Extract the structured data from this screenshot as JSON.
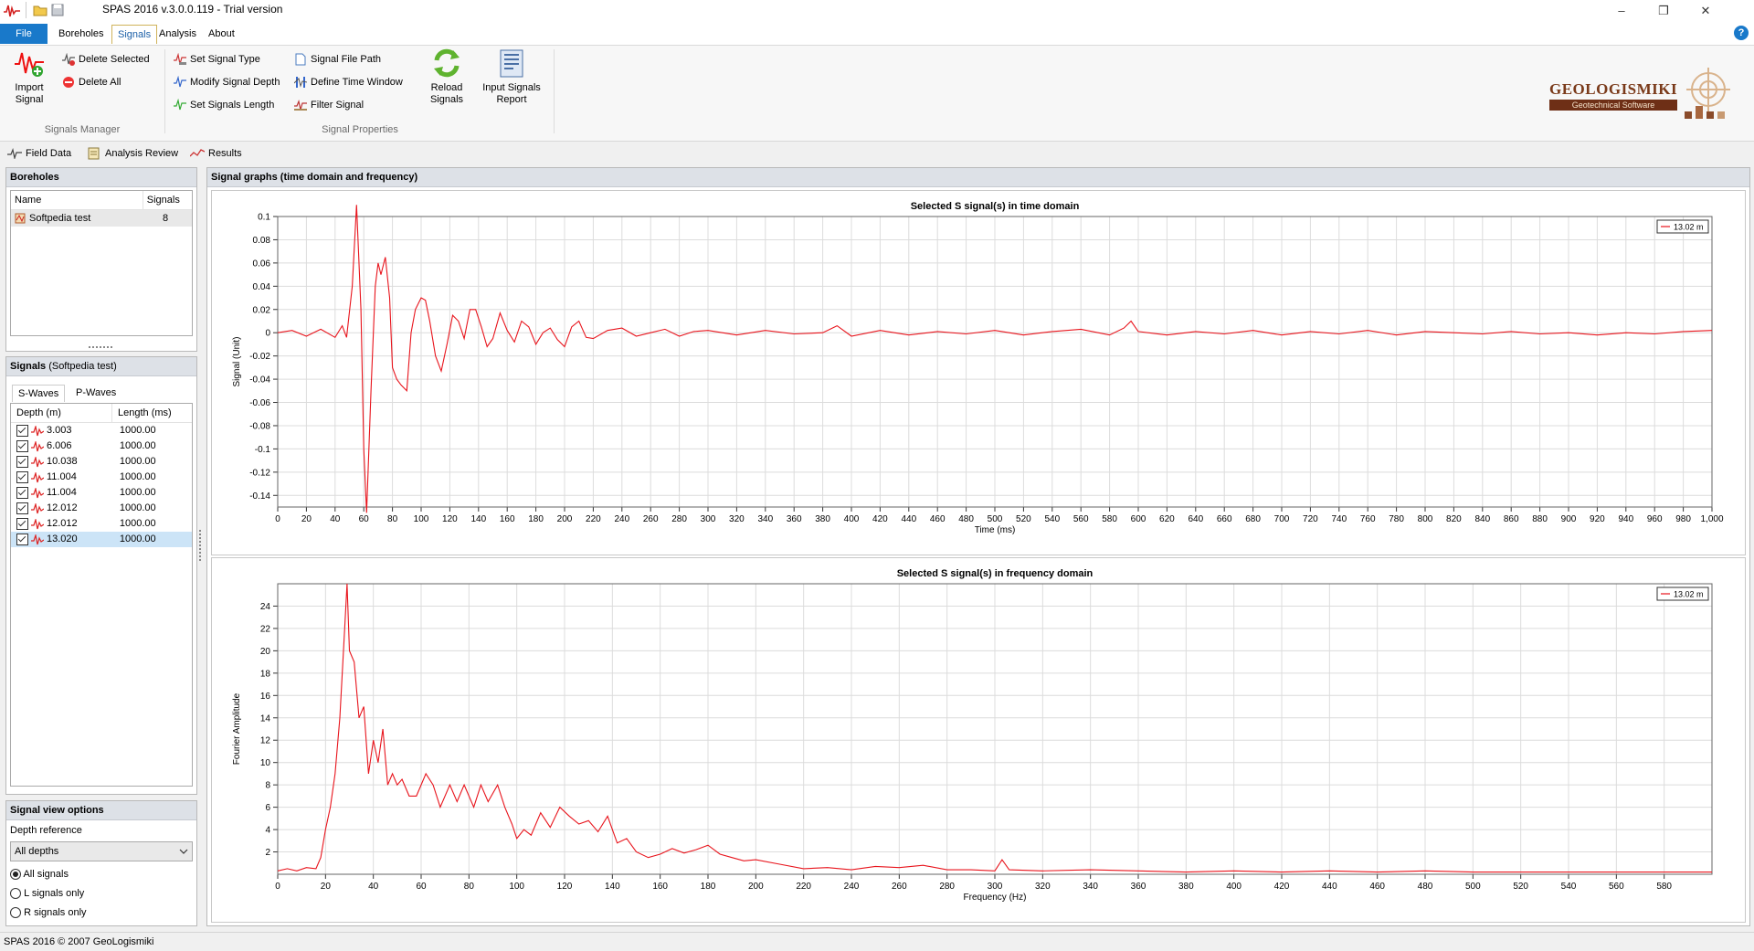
{
  "window": {
    "title": "SPAS 2016 v.3.0.0.119 - Trial version",
    "minimize_glyph": "–",
    "restore_glyph": "❐",
    "close_glyph": "✕"
  },
  "menu": {
    "tabs": [
      "File",
      "Boreholes",
      "Signals",
      "Analysis",
      "About"
    ],
    "active_tab": "Signals",
    "help_glyph": "?"
  },
  "ribbon": {
    "import_signal": "Import\nSignal",
    "import_signal_l1": "Import",
    "import_signal_l2": "Signal",
    "delete_selected": "Delete Selected",
    "delete_all": "Delete All",
    "signals_manager_label": "Signals Manager",
    "set_signal_type": "Set Signal Type",
    "modify_signal_depth": "Modify Signal Depth",
    "set_signals_length": "Set Signals Length",
    "signal_file_path": "Signal File Path",
    "define_time_window": "Define Time Window",
    "filter_signal": "Filter Signal",
    "reload_l1": "Reload",
    "reload_l2": "Signals",
    "report_l1": "Input Signals",
    "report_l2": "Report",
    "signal_properties_label": "Signal Properties",
    "logo_text": "GEOLOGISMIKI",
    "logo_sub": "Geotechnical Software"
  },
  "view_tabs": [
    "Field Data",
    "Analysis Review",
    "Results"
  ],
  "boreholes": {
    "title": "Boreholes",
    "col_name": "Name",
    "col_signals": "Signals",
    "rows": [
      {
        "name": "Softpedia test",
        "signals": "8"
      }
    ]
  },
  "signals": {
    "title": "Signals",
    "title_suffix": "(Softpedia test)",
    "tab_s": "S-Waves",
    "tab_p": "P-Waves",
    "col_depth": "Depth (m)",
    "col_length": "Length (ms)",
    "rows": [
      {
        "depth": "3.003",
        "length": "1000.00"
      },
      {
        "depth": "6.006",
        "length": "1000.00"
      },
      {
        "depth": "10.038",
        "length": "1000.00"
      },
      {
        "depth": "11.004",
        "length": "1000.00"
      },
      {
        "depth": "11.004",
        "length": "1000.00"
      },
      {
        "depth": "12.012",
        "length": "1000.00"
      },
      {
        "depth": "12.012",
        "length": "1000.00"
      },
      {
        "depth": "13.020",
        "length": "1000.00"
      }
    ],
    "selected_index": 7
  },
  "view_options": {
    "title": "Signal view options",
    "depth_reference_label": "Depth reference",
    "depth_reference_value": "All depths",
    "radios": [
      "All signals",
      "L signals only",
      "R signals only"
    ],
    "selected_radio": 0
  },
  "graphs_panel_title": "Signal graphs (time domain and frequency)",
  "status": "SPAS 2016 © 2007 GeoLogismiki",
  "colors": {
    "signal": "#e8141c",
    "accent": "#1979ca",
    "selection": "#cce4f7"
  },
  "chart_data": [
    {
      "type": "line",
      "title": "Selected S signal(s) in time domain",
      "xlabel": "Time (ms)",
      "ylabel": "Signal (Unit)",
      "xlim": [
        0,
        1000
      ],
      "ylim": [
        -0.15,
        0.1
      ],
      "xticks": [
        0,
        20,
        40,
        60,
        80,
        100,
        120,
        140,
        160,
        180,
        200,
        220,
        240,
        260,
        280,
        300,
        320,
        340,
        360,
        380,
        400,
        420,
        440,
        460,
        480,
        500,
        520,
        540,
        560,
        580,
        600,
        620,
        640,
        660,
        680,
        700,
        720,
        740,
        760,
        780,
        800,
        820,
        840,
        860,
        880,
        900,
        920,
        940,
        960,
        980,
        1000
      ],
      "xtick_labels": [
        "0",
        "20",
        "40",
        "60",
        "80",
        "100",
        "120",
        "140",
        "160",
        "180",
        "200",
        "220",
        "240",
        "260",
        "280",
        "300",
        "320",
        "340",
        "360",
        "380",
        "400",
        "420",
        "440",
        "460",
        "480",
        "500",
        "520",
        "540",
        "560",
        "580",
        "600",
        "620",
        "640",
        "660",
        "680",
        "700",
        "720",
        "740",
        "760",
        "780",
        "800",
        "820",
        "840",
        "860",
        "880",
        "900",
        "920",
        "940",
        "960",
        "980",
        "1,000"
      ],
      "yticks": [
        0.1,
        0.08,
        0.06,
        0.04,
        0.02,
        0,
        -0.02,
        -0.04,
        -0.06,
        -0.08,
        -0.1,
        -0.12,
        -0.14
      ],
      "ytick_labels": [
        "0.1",
        "0.08",
        "0.06",
        "0.04",
        "0.02",
        "0",
        "-0.02",
        "-0.04",
        "-0.06",
        "-0.08",
        "-0.1",
        "-0.12",
        "-0.14"
      ],
      "grid": true,
      "legend": "top-right",
      "series": [
        {
          "name": "13.02 m",
          "x": [
            0,
            10,
            20,
            30,
            40,
            45,
            48,
            52,
            55,
            58,
            60,
            62,
            65,
            68,
            70,
            72,
            75,
            78,
            80,
            83,
            86,
            90,
            93,
            96,
            100,
            103,
            106,
            110,
            114,
            118,
            122,
            126,
            130,
            134,
            138,
            142,
            146,
            150,
            155,
            160,
            165,
            170,
            175,
            180,
            185,
            190,
            195,
            200,
            205,
            210,
            215,
            220,
            230,
            240,
            250,
            260,
            270,
            280,
            290,
            300,
            320,
            340,
            360,
            380,
            390,
            400,
            420,
            440,
            460,
            480,
            500,
            520,
            540,
            560,
            580,
            590,
            595,
            600,
            620,
            640,
            660,
            680,
            700,
            720,
            740,
            760,
            780,
            800,
            820,
            840,
            860,
            880,
            900,
            920,
            940,
            960,
            980,
            1000
          ],
          "y": [
            0,
            0.002,
            -0.003,
            0.003,
            -0.004,
            0.006,
            -0.004,
            0.04,
            0.11,
            0.02,
            -0.1,
            -0.155,
            -0.05,
            0.04,
            0.06,
            0.05,
            0.065,
            0.03,
            -0.03,
            -0.04,
            -0.045,
            -0.05,
            0.0,
            0.02,
            0.03,
            0.028,
            0.01,
            -0.02,
            -0.033,
            -0.01,
            0.015,
            0.01,
            -0.005,
            0.02,
            0.02,
            0.005,
            -0.012,
            -0.005,
            0.017,
            0.002,
            -0.008,
            0.01,
            0.005,
            -0.01,
            0.0,
            0.004,
            -0.006,
            -0.012,
            0.005,
            0.01,
            -0.004,
            -0.005,
            0.002,
            0.004,
            -0.003,
            0.0,
            0.003,
            -0.003,
            0.001,
            0.002,
            -0.002,
            0.002,
            -0.001,
            0.0,
            0.006,
            -0.003,
            0.002,
            -0.002,
            0.001,
            -0.001,
            0.002,
            -0.002,
            0.001,
            0.003,
            -0.002,
            0.004,
            0.01,
            0.001,
            -0.002,
            0.001,
            -0.001,
            0.002,
            -0.002,
            0.001,
            -0.001,
            0.002,
            -0.002,
            0.001,
            0.0,
            -0.001,
            0.001,
            -0.001,
            0.0,
            -0.002,
            0.0,
            -0.001,
            0.001,
            0.002
          ]
        }
      ]
    },
    {
      "type": "line",
      "title": "Selected S signal(s) in frequency domain",
      "xlabel": "Frequency (Hz)",
      "ylabel": "Fourier Amplitude",
      "xlim": [
        0,
        600
      ],
      "ylim": [
        0,
        26
      ],
      "xticks": [
        0,
        20,
        40,
        60,
        80,
        100,
        120,
        140,
        160,
        180,
        200,
        220,
        240,
        260,
        280,
        300,
        320,
        340,
        360,
        380,
        400,
        420,
        440,
        460,
        480,
        500,
        520,
        540,
        560,
        580
      ],
      "xtick_labels": [
        "0",
        "20",
        "40",
        "60",
        "80",
        "100",
        "120",
        "140",
        "160",
        "180",
        "200",
        "220",
        "240",
        "260",
        "280",
        "300",
        "320",
        "340",
        "360",
        "380",
        "400",
        "420",
        "440",
        "460",
        "480",
        "500",
        "520",
        "540",
        "560",
        "580"
      ],
      "yticks": [
        2,
        4,
        6,
        8,
        10,
        12,
        14,
        16,
        18,
        20,
        22,
        24
      ],
      "ytick_labels": [
        "2",
        "4",
        "6",
        "8",
        "10",
        "12",
        "14",
        "16",
        "18",
        "20",
        "22",
        "24"
      ],
      "grid": true,
      "legend": "top-right",
      "series": [
        {
          "name": "13.02 m",
          "x": [
            0,
            4,
            8,
            12,
            16,
            18,
            20,
            22,
            24,
            26,
            28,
            29,
            30,
            32,
            34,
            36,
            38,
            40,
            42,
            44,
            46,
            48,
            50,
            52,
            55,
            58,
            62,
            65,
            68,
            72,
            75,
            78,
            82,
            85,
            88,
            92,
            95,
            98,
            100,
            103,
            106,
            110,
            114,
            118,
            122,
            126,
            130,
            134,
            138,
            142,
            146,
            150,
            155,
            160,
            165,
            170,
            175,
            180,
            185,
            190,
            195,
            200,
            210,
            220,
            230,
            240,
            250,
            260,
            270,
            280,
            290,
            300,
            303,
            306,
            320,
            340,
            360,
            380,
            400,
            420,
            440,
            460,
            480,
            500,
            520,
            540,
            560,
            580,
            600
          ],
          "y": [
            0.3,
            0.5,
            0.3,
            0.6,
            0.5,
            1.5,
            4,
            6,
            9,
            14,
            22,
            26,
            20,
            19,
            14,
            15,
            9,
            12,
            10,
            13,
            8,
            9,
            8,
            8.5,
            7,
            7,
            9,
            8,
            6,
            8,
            6.5,
            8,
            6,
            8,
            6.5,
            8,
            6,
            4.5,
            3.2,
            4,
            3.5,
            5.5,
            4.2,
            6,
            5.2,
            4.5,
            4.8,
            3.8,
            5.2,
            2.8,
            3.2,
            2.0,
            1.5,
            1.8,
            2.3,
            1.9,
            2.2,
            2.6,
            1.8,
            1.5,
            1.2,
            1.3,
            0.9,
            0.5,
            0.6,
            0.4,
            0.7,
            0.6,
            0.8,
            0.4,
            0.4,
            0.3,
            1.3,
            0.4,
            0.3,
            0.4,
            0.3,
            0.2,
            0.3,
            0.2,
            0.3,
            0.2,
            0.3,
            0.2,
            0.2,
            0.2,
            0.2,
            0.2,
            0.2
          ]
        }
      ]
    }
  ]
}
